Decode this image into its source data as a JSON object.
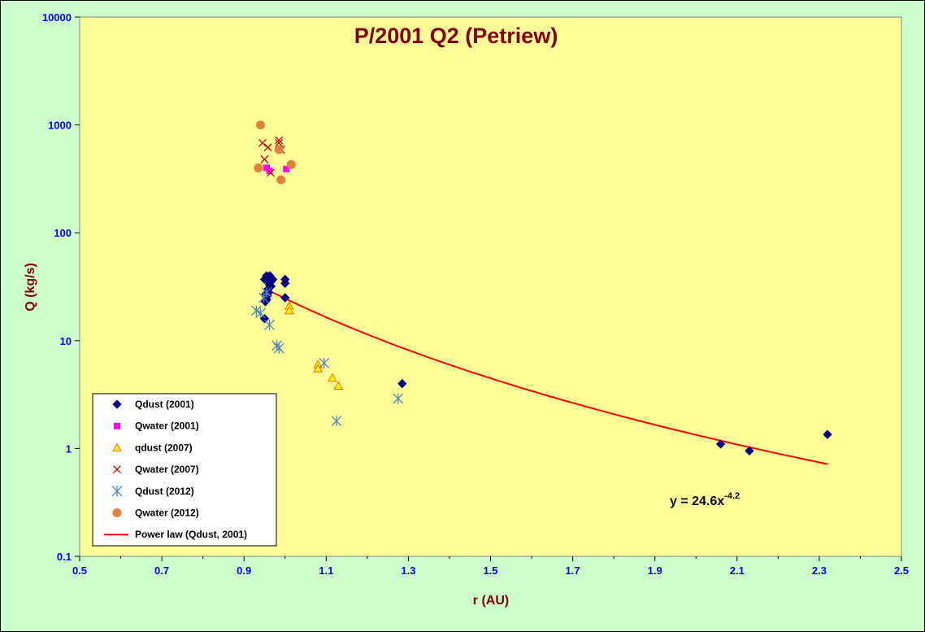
{
  "chart_data": {
    "type": "scatter",
    "title": "P/2001 Q2 (Petriew)",
    "xlabel": "r (AU)",
    "ylabel": "Q (kg/s)",
    "xlim": [
      0.5,
      2.5
    ],
    "ylim": [
      0.1,
      10000
    ],
    "y_scale": "log",
    "x_ticks": [
      "0.5",
      "0.7",
      "0.9",
      "1.1",
      "1.3",
      "1.5",
      "1.7",
      "1.9",
      "2.1",
      "2.3",
      "2.5"
    ],
    "y_ticks": [
      "0.1",
      "1",
      "10",
      "100",
      "1000",
      "10000"
    ],
    "grid": false,
    "legend_position": "bottom-left",
    "background_color": "#ffff99",
    "outer_background_color": "#ccffcc",
    "series": [
      {
        "name": "Qdust (2001)",
        "marker": "diamond",
        "color": "#000080",
        "points": [
          [
            0.95,
            16
          ],
          [
            0.95,
            37
          ],
          [
            0.955,
            40
          ],
          [
            0.96,
            37
          ],
          [
            0.96,
            35
          ],
          [
            0.962,
            33
          ],
          [
            0.958,
            30
          ],
          [
            0.96,
            28
          ],
          [
            0.957,
            26
          ],
          [
            0.955,
            24
          ],
          [
            0.952,
            23
          ],
          [
            0.963,
            40
          ],
          [
            0.965,
            38
          ],
          [
            0.968,
            36
          ],
          [
            0.97,
            37
          ],
          [
            0.966,
            32
          ],
          [
            0.953,
            27
          ],
          [
            1.0,
            37
          ],
          [
            1.0,
            34
          ],
          [
            1.0,
            25
          ],
          [
            1.285,
            4.0
          ],
          [
            2.06,
            1.1
          ],
          [
            2.13,
            0.95
          ],
          [
            2.32,
            1.35
          ]
        ]
      },
      {
        "name": "Qwater (2001)",
        "marker": "square",
        "color": "#ff00ff",
        "points": [
          [
            0.955,
            400
          ],
          [
            0.962,
            375
          ],
          [
            1.003,
            390
          ]
        ]
      },
      {
        "name": "qdust (2007)",
        "marker": "triangle",
        "color": "#ff6600",
        "fill": "#ffff00",
        "points": [
          [
            1.01,
            21
          ],
          [
            1.01,
            19
          ],
          [
            1.08,
            6.0
          ],
          [
            1.08,
            5.5
          ],
          [
            1.115,
            4.5
          ],
          [
            1.13,
            3.8
          ]
        ]
      },
      {
        "name": "Qwater (2007)",
        "marker": "x",
        "color": "#cc0000",
        "points": [
          [
            0.945,
            680
          ],
          [
            0.95,
            480
          ],
          [
            0.958,
            620
          ],
          [
            0.965,
            360
          ],
          [
            0.985,
            720
          ],
          [
            0.985,
            680
          ],
          [
            0.99,
            590
          ]
        ]
      },
      {
        "name": "Qdust (2012)",
        "marker": "star",
        "color": "#4f81bd",
        "points": [
          [
            0.93,
            19
          ],
          [
            0.94,
            18
          ],
          [
            0.948,
            25
          ],
          [
            0.955,
            28
          ],
          [
            0.962,
            14
          ],
          [
            0.98,
            9
          ],
          [
            0.985,
            8.5
          ],
          [
            1.095,
            6.2
          ],
          [
            1.125,
            1.8
          ],
          [
            1.275,
            2.9
          ]
        ]
      },
      {
        "name": "Qwater (2012)",
        "marker": "circle",
        "color": "#e0803a",
        "points": [
          [
            0.94,
            1000
          ],
          [
            0.935,
            400
          ],
          [
            0.985,
            590
          ],
          [
            0.99,
            310
          ],
          [
            1.015,
            430
          ]
        ]
      }
    ],
    "fit": {
      "name": "Power law (Qdust, 2001)",
      "color": "#ff0000",
      "equation_base": "y = 24.6x",
      "equation_exp": "-4.2",
      "coefficient": 24.6,
      "exponent": -4.2,
      "x_range": [
        0.95,
        2.32
      ]
    }
  }
}
